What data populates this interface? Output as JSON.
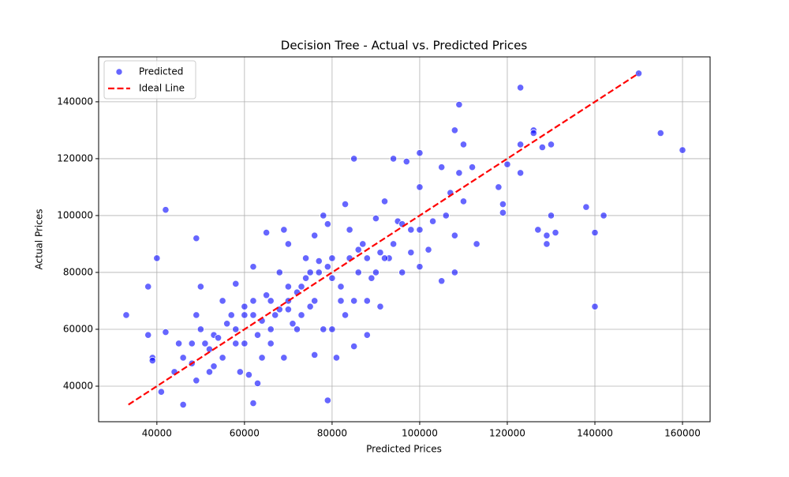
{
  "chart_data": {
    "type": "scatter",
    "title": "Decision Tree - Actual vs. Predicted Prices",
    "x_label": "Predicted Prices",
    "y_label": "Actual Prices",
    "xlim": [
      26700,
      166300
    ],
    "ylim": [
      27500,
      155800
    ],
    "xticks": [
      40000,
      60000,
      80000,
      100000,
      120000,
      140000,
      160000
    ],
    "yticks": [
      40000,
      60000,
      80000,
      100000,
      120000,
      140000
    ],
    "grid": true,
    "legend": "upper left",
    "series": [
      {
        "name": "Predicted",
        "color": "#0000ff",
        "kind": "points",
        "x": [
          33000,
          38000,
          38000,
          39000,
          39000,
          40000,
          42000,
          42000,
          41000,
          49000,
          46000,
          44000,
          45000,
          46000,
          48000,
          49000,
          50000,
          49000,
          50000,
          51000,
          52000,
          53000,
          53000,
          55000,
          56000,
          58000,
          58000,
          59000,
          60000,
          60000,
          61000,
          62000,
          62000,
          63000,
          63000,
          64000,
          65000,
          65000,
          66000,
          67000,
          68000,
          69000,
          69000,
          70000,
          70000,
          71000,
          72000,
          73000,
          74000,
          75000,
          76000,
          76000,
          77000,
          78000,
          78000,
          79000,
          79000,
          80000,
          80000,
          81000,
          82000,
          83000,
          83000,
          84000,
          85000,
          85000,
          86000,
          87000,
          88000,
          89000,
          90000,
          91000,
          92000,
          93000,
          94000,
          95000,
          96000,
          97000,
          98000,
          100000,
          100000,
          100000,
          100000,
          102000,
          103000,
          105000,
          105000,
          106000,
          107000,
          108000,
          108000,
          108000,
          109000,
          109000,
          110000,
          110000,
          112000,
          113000,
          118000,
          119000,
          119000,
          120000,
          123000,
          123000,
          123000,
          126000,
          126000,
          127000,
          128000,
          129000,
          129000,
          130000,
          130000,
          131000,
          138000,
          140000,
          140000,
          142000,
          150000,
          155000,
          160000,
          55000,
          57000,
          60000,
          62000,
          64000,
          66000,
          68000,
          70000,
          72000,
          74000,
          75000,
          77000,
          79000,
          80000,
          82000,
          84000,
          86000,
          88000,
          90000,
          92000,
          94000,
          96000,
          98000,
          48000,
          52000,
          54000,
          58000,
          62000,
          66000,
          70000,
          73000,
          76000,
          85000,
          88000,
          91000
        ],
        "values": [
          65000,
          75000,
          58000,
          50000,
          49000,
          85000,
          102000,
          59000,
          38000,
          92000,
          33500,
          45000,
          55000,
          50000,
          48000,
          65000,
          75000,
          42000,
          60000,
          55000,
          45000,
          47000,
          58000,
          70000,
          62000,
          76000,
          55000,
          45000,
          68000,
          55000,
          44000,
          82000,
          34000,
          41000,
          58000,
          50000,
          94000,
          72000,
          60000,
          65000,
          80000,
          95000,
          50000,
          90000,
          70000,
          62000,
          60000,
          75000,
          85000,
          68000,
          93000,
          51000,
          80000,
          100000,
          60000,
          35000,
          97000,
          85000,
          60000,
          50000,
          75000,
          104000,
          65000,
          95000,
          120000,
          54000,
          80000,
          90000,
          58000,
          78000,
          99000,
          68000,
          105000,
          85000,
          120000,
          98000,
          80000,
          119000,
          87000,
          122000,
          110000,
          95000,
          82000,
          88000,
          98000,
          117000,
          77000,
          100000,
          108000,
          130000,
          93000,
          80000,
          139000,
          115000,
          125000,
          105000,
          117000,
          90000,
          110000,
          104000,
          101000,
          118000,
          145000,
          125000,
          115000,
          130000,
          129000,
          95000,
          124000,
          93000,
          90000,
          125000,
          100000,
          94000,
          103000,
          94000,
          68000,
          100000,
          150000,
          129000,
          123000,
          50000,
          65000,
          65000,
          70000,
          63000,
          70000,
          67000,
          67000,
          73000,
          78000,
          80000,
          84000,
          82000,
          78000,
          70000,
          85000,
          88000,
          85000,
          80000,
          85000,
          90000,
          97000,
          95000,
          55000,
          53000,
          57000,
          60000,
          65000,
          55000,
          75000,
          65000,
          70000,
          70000,
          70000,
          87000
        ]
      },
      {
        "name": "Ideal Line",
        "color": "#ff0000",
        "kind": "dashed-line",
        "x": [
          33500,
          150000
        ],
        "values": [
          33500,
          150000
        ]
      }
    ]
  }
}
